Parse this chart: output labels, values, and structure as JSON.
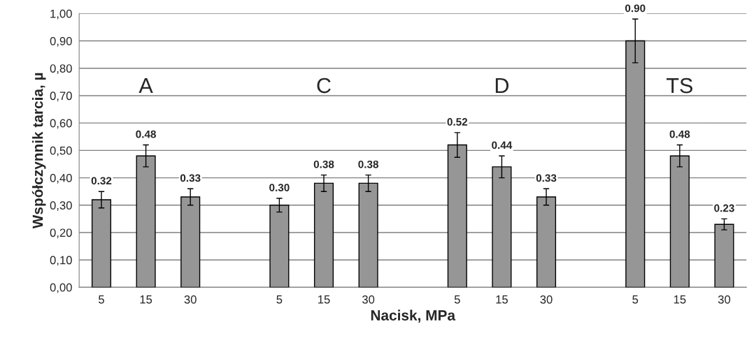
{
  "chart_data": {
    "type": "bar",
    "xlabel": "Nacisk, MPa",
    "ylabel": "Współczynnik tarcia, µ",
    "categories": [
      "5",
      "15",
      "30",
      null,
      "5",
      "15",
      "30",
      null,
      "5",
      "15",
      "30",
      null,
      "5",
      "15",
      "30"
    ],
    "values": [
      0.32,
      0.48,
      0.33,
      null,
      0.3,
      0.38,
      0.38,
      null,
      0.52,
      0.44,
      0.33,
      null,
      0.9,
      0.48,
      0.23
    ],
    "errors": [
      0.03,
      0.04,
      0.03,
      null,
      0.025,
      0.03,
      0.03,
      null,
      0.045,
      0.04,
      0.03,
      null,
      0.08,
      0.04,
      0.02
    ],
    "value_labels": [
      "0.32",
      "0.48",
      "0.33",
      null,
      "0.30",
      "0.38",
      "0.38",
      null,
      "0.52",
      "0.44",
      "0.33",
      null,
      "0.90",
      "0.48",
      "0.23"
    ],
    "color": "#969696",
    "ylim": [
      0,
      1.0
    ],
    "yticks": [
      {
        "value": 0,
        "label": "0,00"
      },
      {
        "value": 0.1,
        "label": "0,10"
      },
      {
        "value": 0.2,
        "label": "0,20"
      },
      {
        "value": 0.3,
        "label": "0,30"
      },
      {
        "value": 0.4,
        "label": "0,40"
      },
      {
        "value": 0.5,
        "label": "0,50"
      },
      {
        "value": 0.6,
        "label": "0,60"
      },
      {
        "value": 0.7,
        "label": "0,70"
      },
      {
        "value": 0.8,
        "label": "0,80"
      },
      {
        "value": 0.9,
        "label": "0,90"
      },
      {
        "value": 1.0,
        "label": "1,00"
      }
    ],
    "grid": "y",
    "annotations": [
      "A",
      "C",
      "D",
      "TS"
    ]
  }
}
